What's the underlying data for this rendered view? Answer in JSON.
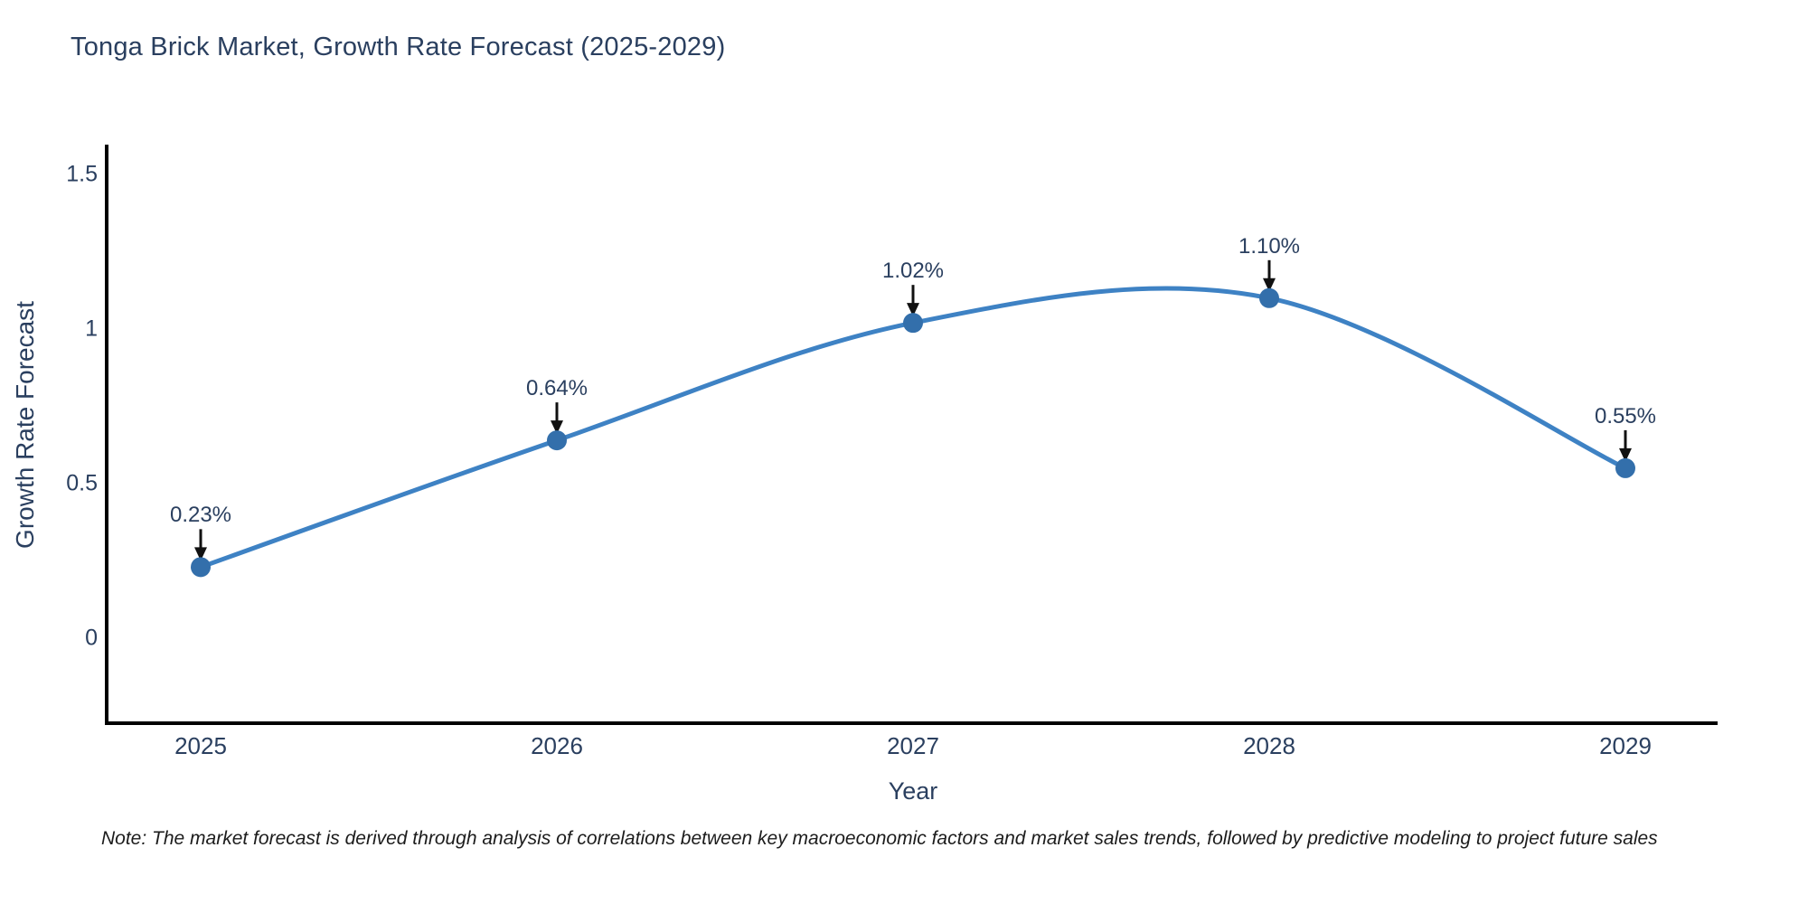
{
  "title": "Tonga Brick Market, Growth Rate Forecast (2025-2029)",
  "note": "Note: The market forecast is derived through analysis of correlations between key macroeconomic factors and market sales trends, followed by predictive modeling to project future sales",
  "colors": {
    "line": "#3e82c4",
    "marker": "#336fab",
    "axis_line": "#000000",
    "text": "#2a3f5f",
    "arrow": "#111111",
    "background": "#ffffff"
  },
  "chart_data": {
    "type": "line",
    "title": "Tonga Brick Market, Growth Rate Forecast (2025-2029)",
    "xlabel": "Year",
    "ylabel": "Growth Rate Forecast",
    "x": [
      2025,
      2026,
      2027,
      2028,
      2029
    ],
    "values": [
      0.23,
      0.64,
      1.02,
      1.1,
      0.55
    ],
    "point_labels": [
      "0.23%",
      "0.64%",
      "1.02%",
      "1.10%",
      "0.55%"
    ],
    "x_tick_labels": [
      "2025",
      "2026",
      "2027",
      "2028",
      "2029"
    ],
    "y_ticks": [
      0,
      0.5,
      1,
      1.5
    ],
    "y_tick_labels": [
      "0",
      "0.5",
      "1",
      "1.5"
    ],
    "ylim": [
      -0.27,
      1.6
    ],
    "line_shape": "spline",
    "grid": false,
    "legend": false,
    "annotations": "black arrows pointing down from each percentage label to its data point"
  }
}
